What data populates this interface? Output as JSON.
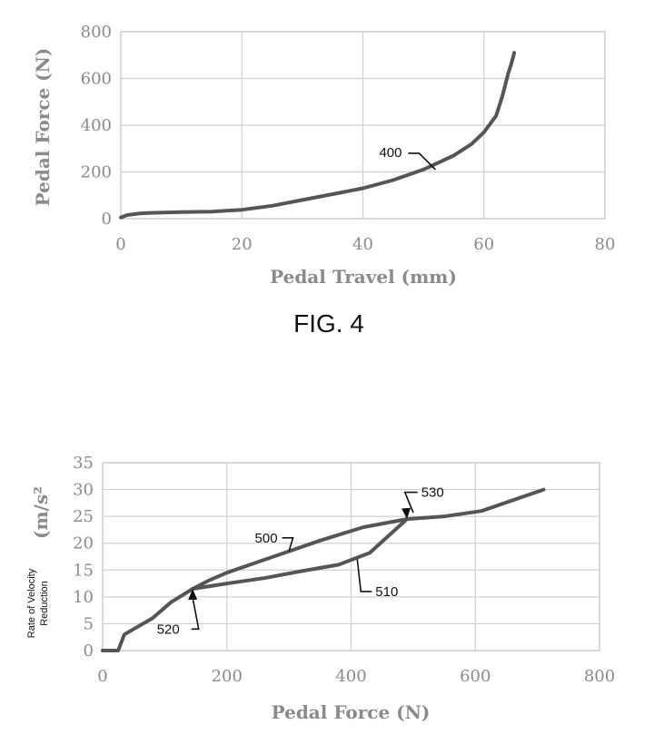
{
  "chart_data": [
    {
      "type": "line",
      "caption": "FIG. 4",
      "xlabel": "Pedal Travel (mm)",
      "ylabel": "Pedal Force (N)",
      "xlim": [
        0,
        80
      ],
      "ylim": [
        0,
        800
      ],
      "xticks": [
        "0",
        "20",
        "40",
        "60",
        "80"
      ],
      "yticks": [
        "0",
        "200",
        "400",
        "600",
        "800"
      ],
      "grid": true,
      "series": [
        {
          "label": "400",
          "x": [
            0,
            1,
            3,
            5,
            10,
            15,
            20,
            25,
            30,
            35,
            40,
            45,
            50,
            55,
            58,
            60,
            62,
            63,
            63.5,
            64,
            64.5,
            65
          ],
          "y": [
            5,
            15,
            22,
            25,
            28,
            30,
            38,
            55,
            80,
            105,
            130,
            165,
            210,
            270,
            320,
            370,
            440,
            520,
            570,
            620,
            660,
            710
          ]
        }
      ],
      "annotations": [
        {
          "text": "400",
          "x": 52,
          "y": 210
        }
      ]
    },
    {
      "type": "line",
      "ylabel": "(m/s²",
      "ylabel_small": [
        "Rate of Velocity",
        "Reduction"
      ],
      "xlabel": "Pedal Force (N)",
      "xlim": [
        0,
        800
      ],
      "ylim": [
        0,
        35
      ],
      "xticks": [
        "0",
        "200",
        "400",
        "600",
        "800"
      ],
      "yticks": [
        "0",
        "5",
        "10",
        "15",
        "20",
        "25",
        "30",
        "35"
      ],
      "grid": true,
      "series": [
        {
          "label": "500",
          "x": [
            0,
            25,
            35,
            50,
            80,
            110,
            145,
            170,
            200,
            250,
            300,
            350,
            420,
            490,
            550,
            610,
            710
          ],
          "y": [
            0,
            0,
            3,
            4,
            6,
            9,
            11.5,
            13,
            14.5,
            16.5,
            18.5,
            20.5,
            23,
            24.5,
            25,
            26,
            30
          ]
        },
        {
          "label": "510",
          "x": [
            145,
            200,
            260,
            320,
            380,
            430,
            490
          ],
          "y": [
            11.5,
            12.5,
            13.5,
            14.8,
            16,
            18.2,
            24.5
          ]
        }
      ],
      "annotations": [
        {
          "text": "500",
          "x": 245,
          "y": 21
        },
        {
          "text": "510",
          "x": 445,
          "y": 11
        },
        {
          "text": "520",
          "x": 140,
          "y": 4
        },
        {
          "text": "530",
          "x": 510,
          "y": 29.5
        }
      ]
    }
  ]
}
